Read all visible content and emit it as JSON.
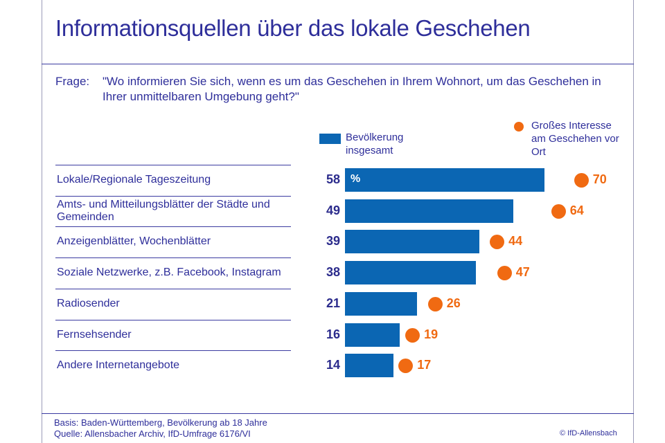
{
  "title": "Informationsquellen über das lokale Geschehen",
  "question": {
    "label": "Frage:",
    "text": "\"Wo informieren Sie sich, wenn es um das Geschehen in Ihrem Wohnort, um das Geschehen in Ihrer unmittelbaren Umgebung geht?\""
  },
  "legend": {
    "series_a": "Bevölkerung insgesamt",
    "series_b": "Großes Interesse am Geschehen vor Ort"
  },
  "percent_marker": "%",
  "footer": {
    "basis": "Basis: Baden-Württemberg, Bevölkerung ab 18 Jahre",
    "source": "Quelle: Allensbacher Archiv, IfD-Umfrage 6176/VI",
    "credit": "© IfD-Allensbach"
  },
  "colors": {
    "bar": "#0b66b3",
    "dot": "#f06a12",
    "text": "#2e2e9a"
  },
  "chart_data": {
    "type": "bar",
    "orientation": "horizontal",
    "title": "Informationsquellen über das lokale Geschehen",
    "categories": [
      "Lokale/Regionale Tageszeitung",
      "Amts- und Mitteilungsblätter der Städte und Gemeinden",
      "Anzeigenblätter, Wochenblätter",
      "Soziale Netzwerke, z.B. Facebook, Instagram",
      "Radiosender",
      "Fernsehsender",
      "Andere Internetangebote"
    ],
    "series": [
      {
        "name": "Bevölkerung insgesamt",
        "values": [
          58,
          49,
          39,
          38,
          21,
          16,
          14
        ]
      },
      {
        "name": "Großes Interesse am Geschehen vor Ort",
        "values": [
          70,
          64,
          44,
          47,
          26,
          19,
          17
        ]
      }
    ],
    "unit": "%",
    "xlim": [
      0,
      100
    ],
    "grid": false,
    "legend_position": "top-right"
  }
}
